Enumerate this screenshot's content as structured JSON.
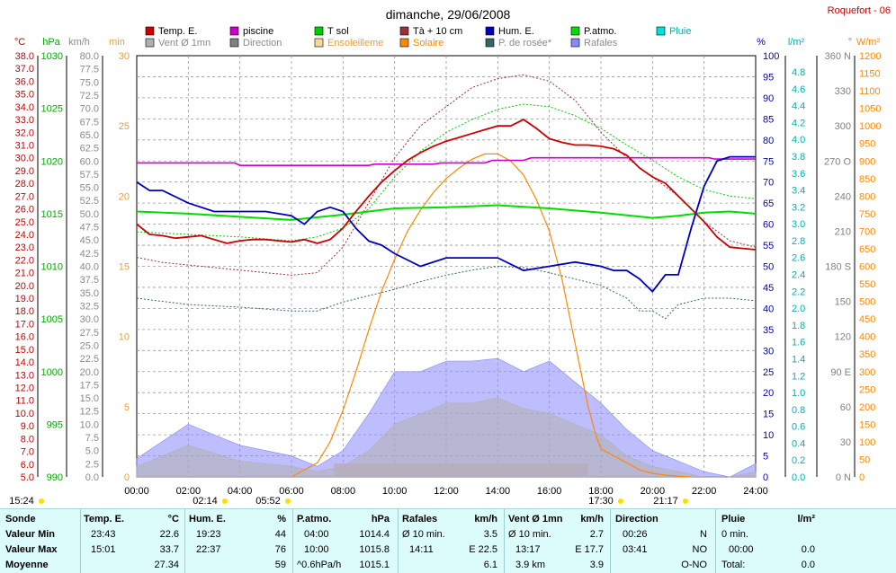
{
  "header": {
    "title": "dimanche, 29/06/2008",
    "location": "Roquefort - 06"
  },
  "legend": [
    {
      "label": "Temp. E.",
      "color": "#cc0000"
    },
    {
      "label": "piscine",
      "color": "#cc00cc"
    },
    {
      "label": "T sol",
      "color": "#00cc00"
    },
    {
      "label": "Tà + 10 cm",
      "color": "#993333"
    },
    {
      "label": "Hum. E.",
      "color": "#0000bb"
    },
    {
      "label": "P.atmo.",
      "color": "#00dd00"
    },
    {
      "label": "Pluie",
      "color": "#00e0e0"
    },
    {
      "label": "Vent Ø 1mn",
      "color": "#b0b0b0"
    },
    {
      "label": "Direction",
      "color": "#808080"
    },
    {
      "label": "Ensoleilleme",
      "color": "#ffd59a"
    },
    {
      "label": "Solaire",
      "color": "#ff8800"
    },
    {
      "label": "P. de rosée*",
      "color": "#336666"
    },
    {
      "label": "Rafales",
      "color": "#8888ff"
    }
  ],
  "axes": {
    "left_units": [
      "°C",
      "hPa",
      "km/h",
      "min"
    ],
    "right_units": [
      "%",
      "l/m²",
      "°",
      "W/m²"
    ],
    "temp_ticks": [
      "38.0",
      "37.0",
      "36.0",
      "35.0",
      "34.0",
      "33.0",
      "32.0",
      "31.0",
      "30.0",
      "29.0",
      "28.0",
      "27.0",
      "26.0",
      "25.0",
      "24.0",
      "23.0",
      "22.0",
      "21.0",
      "20.0",
      "19.0",
      "18.0",
      "17.0",
      "16.0",
      "15.0",
      "14.0",
      "13.0",
      "12.0",
      "11.0",
      "10.0",
      "9.0",
      "8.0",
      "7.0",
      "6.0",
      "5.0"
    ],
    "hpa_ticks": [
      "1030",
      "1025",
      "1020",
      "1015",
      "1010",
      "1005",
      "1000",
      "995",
      "990"
    ],
    "wind_ticks": [
      "80.0",
      "77.5",
      "75.0",
      "72.5",
      "70.0",
      "67.5",
      "65.0",
      "62.5",
      "60.0",
      "57.5",
      "55.0",
      "52.5",
      "50.0",
      "47.5",
      "45.0",
      "42.5",
      "40.0",
      "37.5",
      "35.0",
      "32.5",
      "30.0",
      "27.5",
      "25.0",
      "22.5",
      "20.0",
      "17.5",
      "15.0",
      "12.5",
      "10.0",
      "7.5",
      "5.0",
      "2.5",
      "0.0"
    ],
    "min_ticks": [
      "30",
      "25",
      "20",
      "15",
      "10",
      "5",
      "0"
    ],
    "pct_ticks": [
      "100",
      "95",
      "90",
      "85",
      "80",
      "75",
      "70",
      "65",
      "60",
      "55",
      "50",
      "45",
      "40",
      "35",
      "30",
      "25",
      "20",
      "15",
      "10",
      "5",
      "0"
    ],
    "rain_ticks": [
      "4.8",
      "4.6",
      "4.4",
      "4.2",
      "4.0",
      "3.8",
      "3.6",
      "3.4",
      "3.2",
      "3.0",
      "2.8",
      "2.6",
      "2.4",
      "2.2",
      "2.0",
      "1.8",
      "1.6",
      "1.4",
      "1.2",
      "1.0",
      "0.8",
      "0.6",
      "0.4",
      "0.2",
      "0.0"
    ],
    "deg_ticks": [
      "360 N",
      "330",
      "300",
      "270 O",
      "240",
      "210",
      "180 S",
      "150",
      "120",
      "90 E",
      "60",
      "30",
      "0 N"
    ],
    "wm2_ticks": [
      "1200",
      "1150",
      "1100",
      "1050",
      "1000",
      "950",
      "900",
      "850",
      "800",
      "750",
      "700",
      "650",
      "600",
      "550",
      "500",
      "450",
      "400",
      "350",
      "300",
      "250",
      "200",
      "150",
      "100",
      "50",
      "0"
    ],
    "x_ticks": [
      "00:00",
      "02:00",
      "04:00",
      "06:00",
      "08:00",
      "10:00",
      "12:00",
      "14:00",
      "16:00",
      "18:00",
      "20:00",
      "22:00",
      "24:00"
    ],
    "sun_markers": [
      "15:24",
      "02:14",
      "05:52",
      "17:30",
      "21:17"
    ]
  },
  "chart_data": {
    "type": "line",
    "x_unit": "hours",
    "xlim": [
      0,
      24
    ],
    "series": [
      {
        "name": "Temp. E.",
        "unit": "°C",
        "x": [
          0,
          0.5,
          1,
          1.5,
          2,
          2.5,
          3,
          3.5,
          4,
          4.5,
          5,
          5.5,
          6,
          6.5,
          7,
          7.5,
          8,
          8.5,
          9,
          9.5,
          10,
          10.5,
          11,
          11.5,
          12,
          12.5,
          13,
          13.5,
          14,
          14.5,
          15,
          15.5,
          16,
          16.5,
          17,
          17.5,
          18,
          18.5,
          19,
          19.5,
          20,
          20.5,
          21,
          21.5,
          22,
          22.5,
          23,
          23.5,
          24
        ],
        "y": [
          24.8,
          24.0,
          23.9,
          23.7,
          23.8,
          23.9,
          23.6,
          23.3,
          23.5,
          23.6,
          23.6,
          23.5,
          23.4,
          23.6,
          23.3,
          23.6,
          24.5,
          25.8,
          27.0,
          28.1,
          29.0,
          29.8,
          30.4,
          30.9,
          31.3,
          31.6,
          31.9,
          32.2,
          32.5,
          32.5,
          33.0,
          32.3,
          31.5,
          31.2,
          31.0,
          31.0,
          30.9,
          30.7,
          30.2,
          29.2,
          28.5,
          28.0,
          27.0,
          26.0,
          25.0,
          23.8,
          23.0,
          22.9,
          22.8
        ]
      },
      {
        "name": "piscine",
        "unit": "°C",
        "x": [
          0,
          3.8,
          4,
          9,
          9.2,
          11.5,
          11.8,
          13.5,
          13.8,
          15,
          15.3,
          17.5,
          18,
          22.2,
          22.4,
          24
        ],
        "y": [
          29.6,
          29.6,
          29.4,
          29.4,
          29.5,
          29.5,
          29.6,
          29.6,
          29.8,
          29.8,
          30.0,
          30.0,
          30.0,
          30.0,
          29.9,
          29.9
        ]
      },
      {
        "name": "Hum. E.",
        "unit": "%",
        "x": [
          0,
          0.5,
          1,
          2,
          3,
          4,
          5,
          6,
          6.5,
          7,
          7.5,
          8,
          8.5,
          9,
          9.5,
          10,
          11,
          12,
          13,
          14,
          15,
          16,
          17,
          18,
          18.5,
          19,
          19.5,
          20,
          20.5,
          21,
          21.5,
          22,
          22.5,
          23,
          23.5,
          24
        ],
        "y": [
          70,
          68,
          68,
          65,
          63,
          63,
          63,
          62,
          60,
          63,
          64,
          63,
          59,
          56,
          55,
          53,
          50,
          52,
          52,
          52,
          49,
          50,
          51,
          50,
          49,
          49,
          47,
          44,
          48,
          48,
          59,
          69,
          75,
          76,
          76,
          76
        ]
      },
      {
        "name": "P.atmo.",
        "unit": "hPa",
        "x": [
          0,
          2,
          4,
          6,
          8,
          10,
          12,
          14,
          16,
          18,
          20,
          21,
          22,
          23,
          24
        ],
        "y": [
          1015.2,
          1015.0,
          1014.7,
          1014.4,
          1014.9,
          1015.5,
          1015.6,
          1015.8,
          1015.5,
          1015.1,
          1014.6,
          1014.8,
          1015.1,
          1015.2,
          1015.0
        ]
      },
      {
        "name": "Tà + 10 cm",
        "unit": "°C",
        "x": [
          0,
          1,
          2,
          3,
          4,
          5,
          6,
          7,
          8,
          9,
          10,
          11,
          12,
          13,
          14,
          15,
          16,
          17,
          18,
          19,
          20,
          21,
          22,
          23,
          24
        ],
        "y": [
          22.2,
          21.8,
          21.6,
          21.4,
          21.2,
          21.0,
          20.8,
          21.0,
          23.0,
          26.5,
          30.0,
          32.5,
          34.0,
          35.5,
          36.2,
          36.5,
          36.0,
          34.5,
          32.0,
          30.0,
          28.5,
          27.0,
          25.0,
          23.5,
          23.0
        ]
      },
      {
        "name": "T sol",
        "unit": "°C",
        "x": [
          0,
          2,
          4,
          6,
          7,
          8,
          9,
          10,
          11,
          12,
          13,
          14,
          15,
          16,
          17,
          18,
          19,
          20,
          21,
          22,
          23,
          24
        ],
        "y": [
          24.2,
          24.0,
          23.8,
          23.5,
          23.8,
          24.5,
          26.0,
          28.5,
          30.5,
          32.0,
          33.0,
          33.8,
          34.2,
          34.0,
          33.3,
          32.3,
          31.0,
          29.8,
          28.5,
          27.5,
          27.0,
          26.8
        ]
      },
      {
        "name": "P. de rosée*",
        "unit": "°C",
        "x": [
          0,
          2,
          4,
          6,
          7,
          8,
          9,
          10,
          11,
          12,
          13,
          14,
          15,
          16,
          17,
          18,
          19,
          19.5,
          20,
          20.5,
          21,
          22,
          23,
          24
        ],
        "y": [
          19.0,
          18.5,
          18.3,
          18.0,
          18.0,
          18.7,
          19.2,
          19.7,
          20.3,
          20.8,
          21.2,
          21.5,
          21.4,
          21.0,
          20.5,
          20.0,
          19.0,
          18.0,
          18.0,
          17.4,
          18.5,
          19.0,
          19.0,
          18.8
        ]
      },
      {
        "name": "Solaire",
        "unit": "W/m²",
        "x": [
          6,
          7,
          7.5,
          8,
          8.5,
          9,
          9.5,
          10,
          10.5,
          11,
          11.5,
          12,
          12.5,
          13,
          13.5,
          14,
          14.5,
          15,
          15.5,
          16,
          16.5,
          17,
          17.5,
          17.8,
          18,
          18.5,
          19,
          19.5,
          20,
          20.5,
          21,
          21.5
        ],
        "y": [
          0,
          40,
          100,
          190,
          300,
          420,
          530,
          620,
          700,
          760,
          810,
          850,
          880,
          905,
          920,
          920,
          900,
          860,
          790,
          700,
          560,
          380,
          200,
          120,
          80,
          60,
          40,
          20,
          10,
          5,
          2,
          0
        ]
      },
      {
        "name": "Rafales",
        "unit": "km/h",
        "x": [
          0,
          2,
          4,
          6,
          7,
          8,
          9,
          10,
          11,
          12,
          13,
          14,
          15,
          16,
          17,
          18,
          19,
          20,
          21,
          22,
          23,
          24
        ],
        "y": [
          3.5,
          10,
          6,
          4,
          2,
          5,
          12,
          20,
          20,
          22,
          22,
          22.5,
          20,
          22,
          18,
          14,
          9,
          5,
          3,
          1,
          0,
          2.5
        ]
      },
      {
        "name": "Vent Ø 1mn",
        "unit": "km/h",
        "x": [
          0,
          2,
          4,
          6,
          7,
          8,
          9,
          10,
          11,
          12,
          13,
          14,
          15,
          16,
          17,
          18,
          19,
          20,
          21,
          22,
          23,
          24
        ],
        "y": [
          2,
          6,
          3,
          2,
          1,
          2,
          5,
          10,
          12,
          14,
          14,
          15,
          13,
          12,
          10,
          8,
          4,
          2,
          1,
          0,
          0,
          1
        ]
      }
    ],
    "ylim_temp": [
      5,
      38
    ],
    "ylim_pct": [
      0,
      100
    ],
    "ylim_wm2": [
      0,
      1200
    ],
    "sunshine_interval": [
      7.65,
      17.5
    ]
  },
  "summary": {
    "sonde": {
      "title": "Sonde",
      "rows": [
        "Valeur Min",
        "Valeur Max",
        "Moyenne"
      ]
    },
    "temp": {
      "title": "Temp. E.",
      "unit": "°C",
      "min_time": "23:43",
      "min": "22.6",
      "max_time": "15:01",
      "max": "33.7",
      "mean": "27.34"
    },
    "hum": {
      "title": "Hum. E.",
      "unit": "%",
      "min_time": "19:23",
      "min": "44",
      "max_time": "22:37",
      "max": "76",
      "mean": "59"
    },
    "patmo": {
      "title": "P.atmo.",
      "unit": "hPa",
      "min_time": "04:00",
      "min": "1014.4",
      "max_time": "10:00",
      "max": "1015.8",
      "trend": "^0.6hPa/h",
      "mean": "1015.1"
    },
    "rafales": {
      "title": "Rafales",
      "unit": "km/h",
      "min_label": "Ø 10 min.",
      "min": "3.5",
      "max_time": "14:11",
      "max": "E 22.5",
      "mean": "6.1"
    },
    "vent": {
      "title": "Vent Ø 1mn",
      "unit": "km/h",
      "min_label": "Ø 10 min.",
      "min": "2.7",
      "max_time": "13:17",
      "max": "E 17.7",
      "dist": "3.9 km",
      "mean": "3.9"
    },
    "direction": {
      "title": "Direction",
      "min_time": "00:26",
      "min": "N",
      "max_time": "03:41",
      "max": "NO",
      "mean": "O-NO"
    },
    "pluie": {
      "title": "Pluie",
      "unit": "l/m²",
      "min_label": "0 min.",
      "max_time": "00:00",
      "max": "0.0",
      "total_label": "Total:",
      "total": "0.0"
    }
  },
  "colors": {
    "footer_bg": "#dcfbfb",
    "grid": "#888888"
  }
}
